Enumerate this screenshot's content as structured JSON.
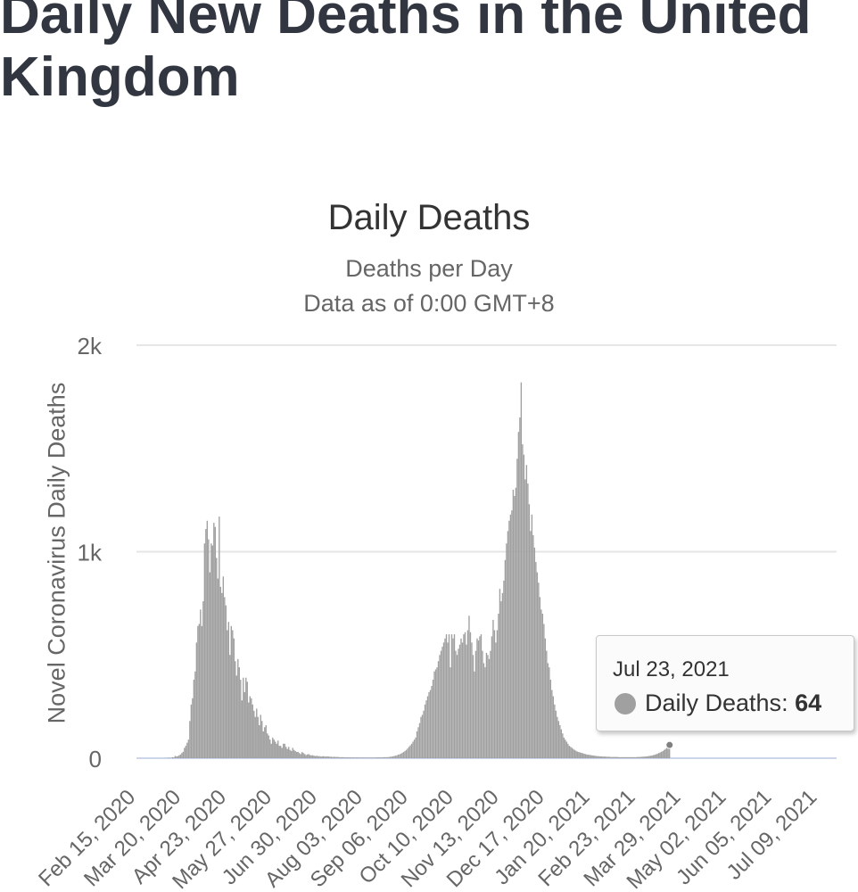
{
  "page": {
    "title": "Daily New Deaths in the United Kingdom"
  },
  "chart_data": {
    "type": "bar",
    "title": "Daily Deaths",
    "subtitle": [
      "Deaths per Day",
      "Data as of 0:00 GMT+8"
    ],
    "xlabel": "",
    "ylabel": "Novel Coronavirus Daily Deaths",
    "ylim": [
      0,
      2000
    ],
    "yticks": [
      {
        "value": 0,
        "label": "0"
      },
      {
        "value": 1000,
        "label": "1k"
      },
      {
        "value": 2000,
        "label": "2k"
      }
    ],
    "xlim": [
      "2020-02-15",
      "2021-07-23"
    ],
    "xticks": [
      {
        "date": "2020-02-15",
        "label": "Feb 15, 2020"
      },
      {
        "date": "2020-03-20",
        "label": "Mar 20, 2020"
      },
      {
        "date": "2020-04-23",
        "label": "Apr 23, 2020"
      },
      {
        "date": "2020-05-27",
        "label": "May 27, 2020"
      },
      {
        "date": "2020-06-30",
        "label": "Jun 30, 2020"
      },
      {
        "date": "2020-08-03",
        "label": "Aug 03, 2020"
      },
      {
        "date": "2020-09-06",
        "label": "Sep 06, 2020"
      },
      {
        "date": "2020-10-10",
        "label": "Oct 10, 2020"
      },
      {
        "date": "2020-11-13",
        "label": "Nov 13, 2020"
      },
      {
        "date": "2020-12-17",
        "label": "Dec 17, 2020"
      },
      {
        "date": "2021-01-20",
        "label": "Jan 20, 2021"
      },
      {
        "date": "2021-02-23",
        "label": "Feb 23, 2021"
      },
      {
        "date": "2021-03-29",
        "label": "Mar 29, 2021"
      },
      {
        "date": "2021-05-02",
        "label": "May 02, 2021"
      },
      {
        "date": "2021-06-05",
        "label": "Jun 05, 2021"
      },
      {
        "date": "2021-07-09",
        "label": "Jul 09, 2021"
      }
    ],
    "grid": true,
    "legend": "none",
    "bar_color": "#a0a0a0",
    "grid_color": "#e6e6e6",
    "series": [
      {
        "name": "Daily Deaths",
        "start_date": "2020-02-15",
        "values": [
          0,
          0,
          0,
          0,
          0,
          0,
          0,
          0,
          0,
          0,
          0,
          0,
          0,
          0,
          0,
          0,
          0,
          0,
          0,
          0,
          0,
          1,
          0,
          1,
          2,
          2,
          1,
          5,
          4,
          11,
          9,
          10,
          14,
          18,
          25,
          31,
          50,
          60,
          75,
          90,
          180,
          260,
          290,
          380,
          420,
          560,
          640,
          650,
          720,
          640,
          760,
          1040,
          1110,
          1150,
          1060,
          900,
          1040,
          1030,
          1140,
          1120,
          970,
          870,
          1170,
          830,
          800,
          880,
          780,
          740,
          620,
          660,
          500,
          640,
          620,
          580,
          470,
          400,
          480,
          440,
          380,
          280,
          390,
          320,
          390,
          370,
          270,
          300,
          290,
          260,
          230,
          200,
          240,
          200,
          160,
          210,
          180,
          130,
          150,
          160,
          120,
          110,
          90,
          70,
          100,
          90,
          80,
          70,
          85,
          60,
          60,
          50,
          70,
          70,
          55,
          45,
          55,
          40,
          35,
          50,
          40,
          35,
          30,
          30,
          25,
          20,
          30,
          25,
          20,
          15,
          18,
          20,
          15,
          14,
          14,
          12,
          10,
          12,
          10,
          10,
          8,
          9,
          10,
          8,
          8,
          9,
          8,
          7,
          7,
          6,
          7,
          6,
          6,
          6,
          5,
          5,
          5,
          5,
          4,
          4,
          4,
          4,
          4,
          3,
          4,
          3,
          3,
          4,
          3,
          3,
          3,
          3,
          3,
          3,
          3,
          3,
          3,
          3,
          3,
          3,
          3,
          3,
          4,
          4,
          4,
          4,
          4,
          5,
          5,
          5,
          5,
          6,
          7,
          8,
          9,
          11,
          12,
          14,
          17,
          19,
          22,
          26,
          30,
          35,
          40,
          47,
          55,
          62,
          70,
          80,
          90,
          100,
          130,
          150,
          170,
          200,
          210,
          230,
          260,
          280,
          300,
          320,
          330,
          350,
          380,
          420,
          430,
          440,
          470,
          500,
          520,
          540,
          560,
          580,
          600,
          560,
          600,
          440,
          600,
          580,
          600,
          520,
          500,
          530,
          550,
          580,
          560,
          600,
          610,
          550,
          620,
          690,
          610,
          560,
          500,
          420,
          520,
          580,
          570,
          590,
          600,
          520,
          460,
          440,
          510,
          500,
          480,
          520,
          590,
          670,
          620,
          560,
          620,
          700,
          820,
          760,
          800,
          860,
          960,
          1040,
          1100,
          1150,
          1180,
          1200,
          1300,
          1270,
          1310,
          1450,
          1580,
          1650,
          1820,
          1520,
          1470,
          1350,
          1420,
          1330,
          1230,
          1100,
          1180,
          1080,
          1020,
          950,
          900,
          850,
          780,
          720,
          700,
          650,
          580,
          520,
          460,
          440,
          380,
          330,
          300,
          260,
          230,
          200,
          180,
          160,
          140,
          120,
          100,
          90,
          80,
          70,
          60,
          55,
          50,
          45,
          40,
          36,
          32,
          30,
          28,
          26,
          24,
          22,
          20,
          18,
          17,
          16,
          15,
          14,
          13,
          12,
          11,
          10,
          10,
          9,
          9,
          8,
          8,
          8,
          7,
          7,
          7,
          6,
          6,
          6,
          6,
          6,
          6,
          5,
          5,
          5,
          5,
          5,
          5,
          5,
          5,
          5,
          5,
          5,
          5,
          5,
          5,
          6,
          6,
          6,
          7,
          7,
          8,
          8,
          9,
          10,
          11,
          12,
          13,
          15,
          17,
          19,
          22,
          25,
          28,
          31,
          35,
          40,
          45,
          50,
          55,
          64
        ]
      }
    ],
    "tooltip": {
      "date": "Jul 23, 2021",
      "series": "Daily Deaths",
      "value": "64"
    }
  }
}
